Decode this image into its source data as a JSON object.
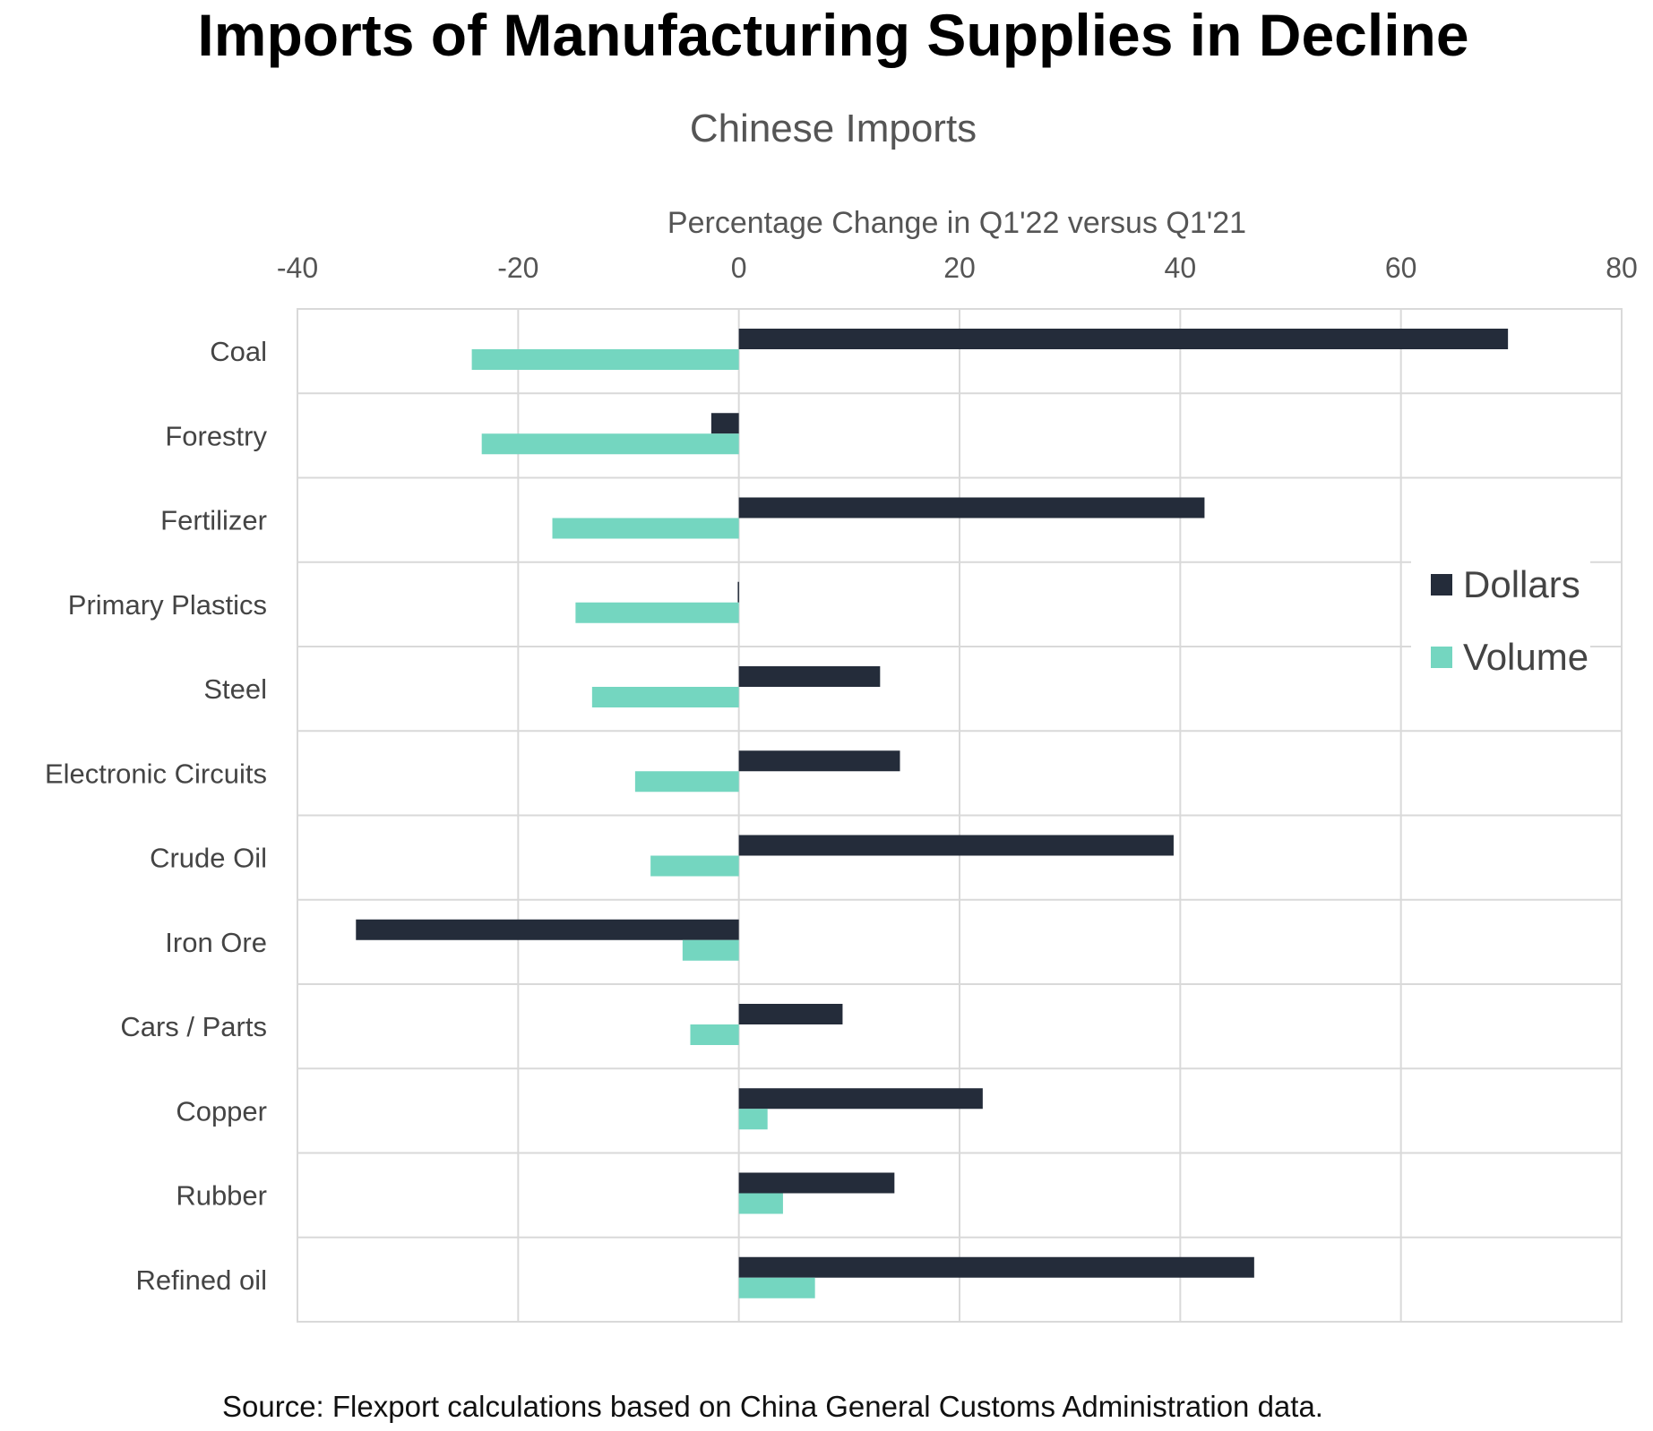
{
  "chart_data": {
    "type": "bar",
    "orientation": "horizontal",
    "title": "Imports of Manufacturing Supplies in Decline",
    "subtitle": "Chinese Imports",
    "xlabel": "Percentage Change in Q1'22 versus Q1'21",
    "xlim": [
      -40,
      80
    ],
    "xticks": [
      "-40",
      "-20",
      "0",
      "20",
      "40",
      "60",
      "80"
    ],
    "xtick_values": [
      -40,
      -20,
      0,
      20,
      40,
      60,
      80
    ],
    "grid": true,
    "legend_position": "right",
    "categories": [
      "Coal",
      "Forestry",
      "Fertilizer",
      "Primary Plastics",
      "Steel",
      "Electronic Circuits",
      "Crude Oil",
      "Iron Ore",
      "Cars / Parts",
      "Copper",
      "Rubber",
      "Refined oil"
    ],
    "series": [
      {
        "name": "Dollars",
        "color": "#242c3a",
        "values": [
          69.7,
          -2.5,
          42.2,
          -0.1,
          12.8,
          14.6,
          39.4,
          -34.7,
          9.4,
          22.1,
          14.1,
          46.7
        ]
      },
      {
        "name": "Volume",
        "color": "#74d6c0",
        "values": [
          -24.2,
          -23.3,
          -16.9,
          -14.8,
          -13.3,
          -9.4,
          -8.0,
          -5.1,
          -4.4,
          2.6,
          4.0,
          6.9
        ]
      }
    ],
    "source": "Source: Flexport calculations based on China General Customs Administration data."
  }
}
